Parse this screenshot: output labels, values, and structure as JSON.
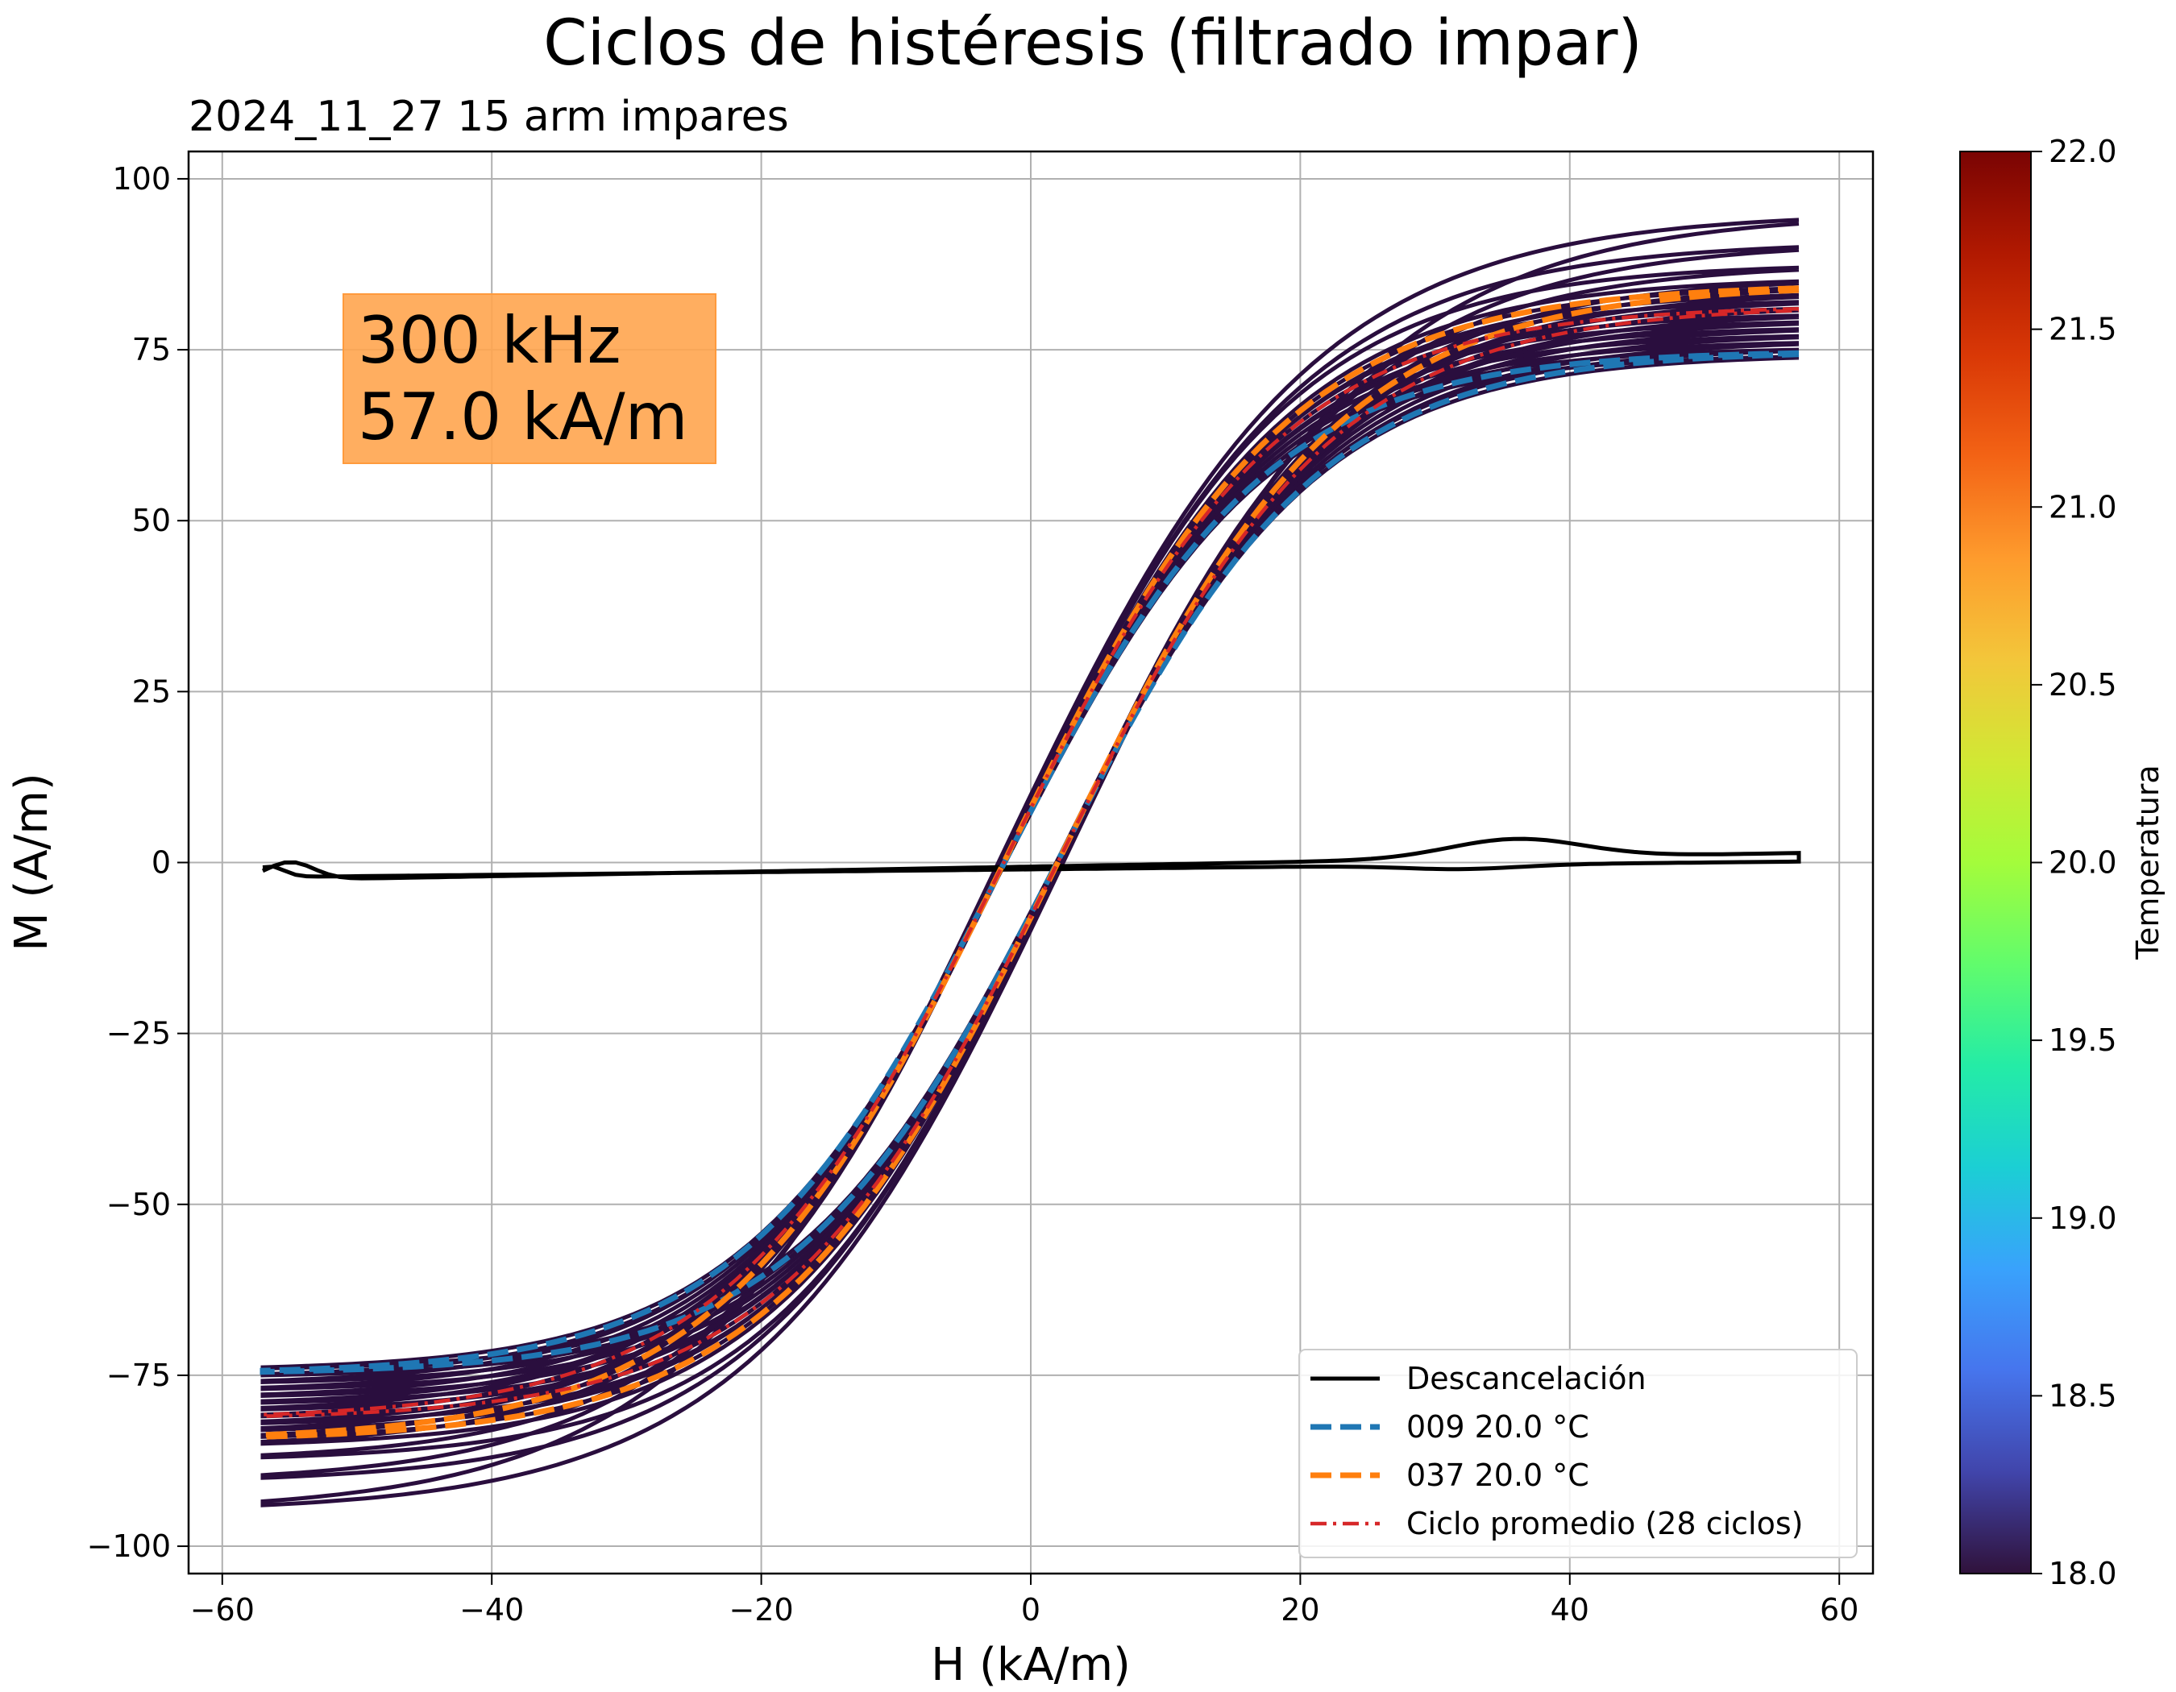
{
  "chart_data": {
    "type": "line",
    "title": "Ciclos de histéresis (filtrado impar)",
    "subtitle": "2024_11_27   15 arm impares",
    "xlabel": "H (kA/m)",
    "ylabel": "M (A/m)",
    "xlim": [
      -62.5,
      62.5
    ],
    "ylim": [
      -104,
      104
    ],
    "xticks": [
      -60,
      -40,
      -20,
      0,
      20,
      40,
      60
    ],
    "xtick_labels": [
      "−60",
      "−40",
      "−20",
      "0",
      "20",
      "40",
      "60"
    ],
    "yticks": [
      -100,
      -75,
      -50,
      -25,
      0,
      25,
      50,
      75,
      100
    ],
    "ytick_labels": [
      "−100",
      "−75",
      "−50",
      "−25",
      "0",
      "25",
      "50",
      "75",
      "100"
    ],
    "grid": true,
    "legend_position": "lower-right",
    "annotation": {
      "lines": [
        "300 kHz",
        "57.0 kA/m"
      ],
      "background_color": "#FFA54F"
    },
    "hmax": 57.0,
    "cycle_color": "#2A0E3E",
    "background_cycles": [
      {
        "ms": 94,
        "hc": 2.4,
        "w": 23
      },
      {
        "ms": 90,
        "hc": 2.2,
        "w": 22
      },
      {
        "ms": 87,
        "hc": 2.1,
        "w": 21
      },
      {
        "ms": 85,
        "hc": 2.0,
        "w": 21
      },
      {
        "ms": 84,
        "hc": 2.0,
        "w": 21
      },
      {
        "ms": 83,
        "hc": 2.0,
        "w": 21
      },
      {
        "ms": 82,
        "hc": 2.0,
        "w": 20.5
      },
      {
        "ms": 81,
        "hc": 2.0,
        "w": 20.5
      },
      {
        "ms": 80,
        "hc": 2.0,
        "w": 20.5
      },
      {
        "ms": 79,
        "hc": 1.9,
        "w": 20
      },
      {
        "ms": 78,
        "hc": 1.9,
        "w": 20
      },
      {
        "ms": 77,
        "hc": 1.9,
        "w": 20
      },
      {
        "ms": 76,
        "hc": 1.9,
        "w": 20
      },
      {
        "ms": 75,
        "hc": 1.9,
        "w": 19.5
      },
      {
        "ms": 74,
        "hc": 1.9,
        "w": 19.5
      }
    ],
    "series": [
      {
        "name": "Descancelación",
        "color": "#000000",
        "style": "solid",
        "kind": "descancelacion"
      },
      {
        "name": "009  20.0 °C",
        "color": "#1F77B4",
        "style": "dashed",
        "ms": 74.5,
        "hc": 1.95,
        "w": 19.5
      },
      {
        "name": "037  20.0 °C",
        "color": "#FF7F0E",
        "style": "dashed",
        "ms": 84,
        "hc": 2.0,
        "w": 21
      },
      {
        "name": "Ciclo promedio (28 ciclos)",
        "color": "#D62728",
        "style": "dashdot",
        "ms": 81,
        "hc": 2.0,
        "w": 20.5
      }
    ],
    "colorbar": {
      "label": "Temperatura",
      "min": 18.0,
      "max": 22.0,
      "ticks": [
        "18.0",
        "18.5",
        "19.0",
        "19.5",
        "20.0",
        "20.5",
        "21.0",
        "21.5",
        "22.0"
      ],
      "colormap": [
        "#30123B",
        "#4145AB",
        "#4675ED",
        "#39A2FC",
        "#1BCFD4",
        "#24ECA6",
        "#61FC6C",
        "#A4FC3B",
        "#D1E834",
        "#F3C63A",
        "#FE9B2D",
        "#F36315",
        "#D93806",
        "#B11901",
        "#7A0403"
      ]
    }
  }
}
